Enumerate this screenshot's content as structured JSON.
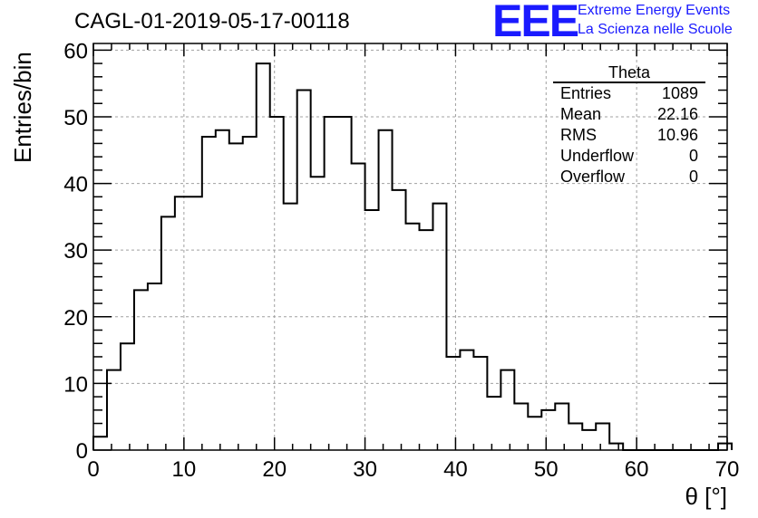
{
  "header": {
    "title": "CAGL-01-2019-05-17-00118",
    "logo_text": "EEE",
    "logo_line1": "Extreme Energy Events",
    "logo_line2": "La Scienza nelle Scuole"
  },
  "stats_box": {
    "title": "Theta",
    "rows": [
      {
        "label": "Entries",
        "value": "1089"
      },
      {
        "label": "Mean",
        "value": "22.16"
      },
      {
        "label": "RMS",
        "value": "10.96"
      },
      {
        "label": "Underflow",
        "value": "0"
      },
      {
        "label": "Overflow",
        "value": "0"
      }
    ]
  },
  "colors": {
    "line": "#000000",
    "grid": "#a0a0a0",
    "logo": "#1a1aff"
  },
  "chart_data": {
    "type": "histogram",
    "title": "CAGL-01-2019-05-17-00118",
    "xlabel": "θ [°]",
    "ylabel": "Entries/bin",
    "xlim": [
      0,
      70
    ],
    "ylim": [
      0,
      61
    ],
    "bin_width": 1.5,
    "x_ticks": [
      0,
      10,
      20,
      30,
      40,
      50,
      60,
      70
    ],
    "y_ticks": [
      0,
      10,
      20,
      30,
      40,
      50,
      60
    ],
    "grid": true,
    "values": [
      2,
      12,
      16,
      24,
      25,
      35,
      38,
      38,
      47,
      48,
      46,
      47,
      58,
      50,
      37,
      54,
      41,
      50,
      50,
      43,
      36,
      48,
      39,
      34,
      33,
      37,
      14,
      15,
      14,
      8,
      12,
      7,
      5,
      6,
      7,
      4,
      3,
      4,
      1,
      0,
      0,
      0,
      0,
      0,
      0,
      0,
      1
    ]
  }
}
